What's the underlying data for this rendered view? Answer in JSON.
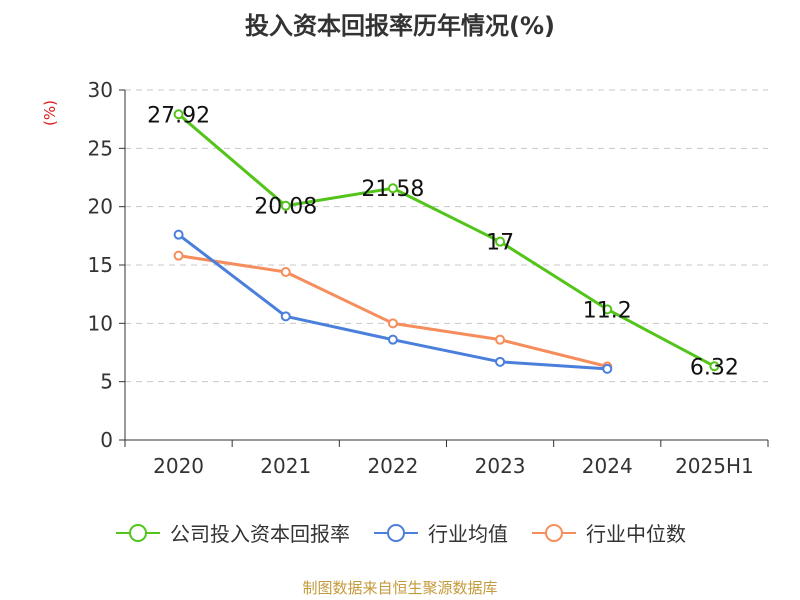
{
  "chart_data": {
    "type": "line",
    "title": "投入资本回报率历年情况(%)",
    "ylabel": "(%)",
    "categories": [
      "2020",
      "2021",
      "2022",
      "2023",
      "2024",
      "2025H1"
    ],
    "ylim": [
      0,
      30
    ],
    "yticks": [
      0,
      5,
      10,
      15,
      20,
      25,
      30
    ],
    "grid": true,
    "legend_position": "bottom",
    "series": [
      {
        "name": "公司投入资本回报率",
        "color": "#52c41a",
        "values": [
          27.92,
          20.08,
          21.58,
          17,
          11.2,
          6.32
        ],
        "show_labels": true
      },
      {
        "name": "行业均值",
        "color": "#4a7fdc",
        "values": [
          17.6,
          10.6,
          8.6,
          6.7,
          6.1,
          null
        ],
        "show_labels": false
      },
      {
        "name": "行业中位数",
        "color": "#f58d5c",
        "values": [
          15.8,
          14.4,
          10.0,
          8.6,
          6.3,
          null
        ],
        "show_labels": false
      }
    ],
    "data_labels": [
      "27.92",
      "20.08",
      "21.58",
      "17",
      "11.2",
      "6.32"
    ]
  },
  "legend": [
    "公司投入资本回报率",
    "行业均值",
    "行业中位数"
  ],
  "source": "制图数据来自恒生聚源数据库"
}
